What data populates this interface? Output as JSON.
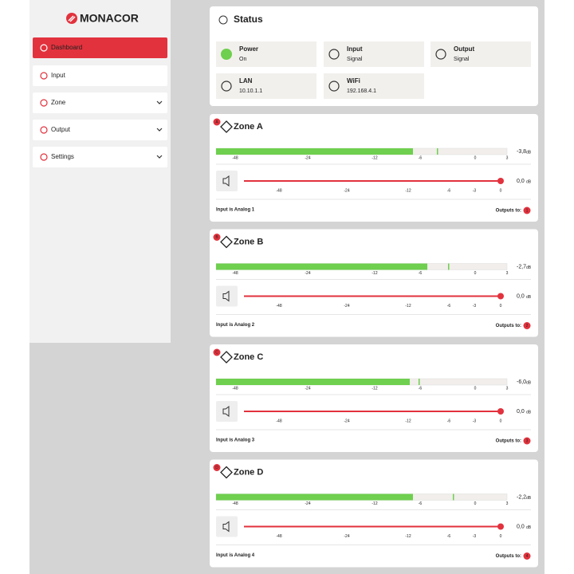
{
  "sidebar": {
    "logo": "MONACOR",
    "menu": [
      {
        "label": "Dashboard"
      },
      {
        "label": "Input"
      },
      {
        "label": "Zone"
      },
      {
        "label": "Output"
      },
      {
        "label": "Settings"
      }
    ]
  },
  "status": {
    "title": "Status",
    "tiles": [
      {
        "label": "Power",
        "value": "On"
      },
      {
        "label": "Input",
        "value": "Signal"
      },
      {
        "label": "Output",
        "value": "Signal"
      },
      {
        "label": "LAN",
        "value": "10.10.1.1"
      },
      {
        "label": "WiFi",
        "value": "192.168.4.1"
      }
    ]
  },
  "scales": {
    "meter": [
      "-48",
      "-24",
      "-12",
      "-6",
      "0",
      "3"
    ],
    "slider": [
      "-48",
      "-24",
      "-12",
      "-6",
      "-3",
      "0"
    ]
  },
  "zones": [
    {
      "badge": "A",
      "title": "Zone A",
      "level": "-3,8",
      "level_unit": "dB",
      "volume": "0,0",
      "volume_unit": "dB",
      "input": "Input is Analog 1",
      "outputs_label": "Outputs to:",
      "outputs": "1"
    },
    {
      "badge": "B",
      "title": "Zone B",
      "level": "-2,7",
      "level_unit": "dB",
      "volume": "0,0",
      "volume_unit": "dB",
      "input": "Input is Analog 2",
      "outputs_label": "Outputs to:",
      "outputs": "2"
    },
    {
      "badge": "C",
      "title": "Zone C",
      "level": "-6,0",
      "level_unit": "dB",
      "volume": "0,0",
      "volume_unit": "dB",
      "input": "Input is Analog 3",
      "outputs_label": "Outputs to:",
      "outputs": "3"
    },
    {
      "badge": "D",
      "title": "Zone D",
      "level": "-2,2",
      "level_unit": "dB",
      "volume": "0,0",
      "volume_unit": "dB",
      "input": "Input is Analog 4",
      "outputs_label": "Outputs to:",
      "outputs": "4"
    }
  ]
}
